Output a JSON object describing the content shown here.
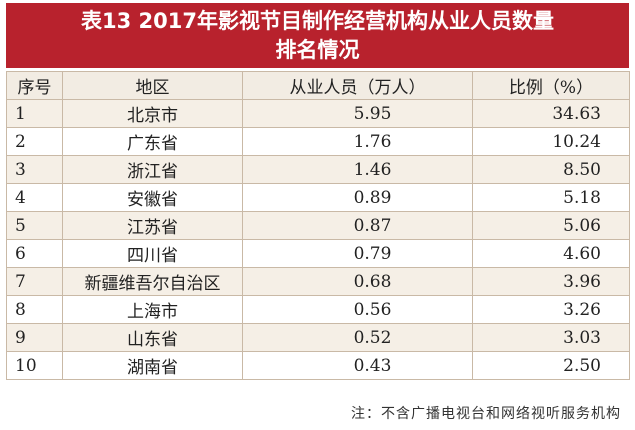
{
  "title": {
    "line1": "表13  2017年影视节目制作经营机构从业人员数量",
    "line2": "排名情况"
  },
  "table": {
    "headers": [
      "序号",
      "地区",
      "从业人员（万人）",
      "比例（%）"
    ],
    "rows": [
      [
        "1",
        "北京市",
        "5.95",
        "34.63"
      ],
      [
        "2",
        "广东省",
        "1.76",
        "10.24"
      ],
      [
        "3",
        "浙江省",
        "1.46",
        "8.50"
      ],
      [
        "4",
        "安徽省",
        "0.89",
        "5.18"
      ],
      [
        "5",
        "江苏省",
        "0.87",
        "5.06"
      ],
      [
        "6",
        "四川省",
        "0.79",
        "4.60"
      ],
      [
        "7",
        "新疆维吾尔自治区",
        "0.68",
        "3.96"
      ],
      [
        "8",
        "上海市",
        "0.56",
        "3.26"
      ],
      [
        "9",
        "山东省",
        "0.52",
        "3.03"
      ],
      [
        "10",
        "湖南省",
        "0.43",
        "2.50"
      ]
    ]
  },
  "note": "注：不含广播电视台和网络视听服务机构",
  "colors": {
    "title_bg": "#b8222d",
    "header_bg": "#f2ece3",
    "stripe_bg": "#f5efe6",
    "border": "#c9b9a6"
  }
}
